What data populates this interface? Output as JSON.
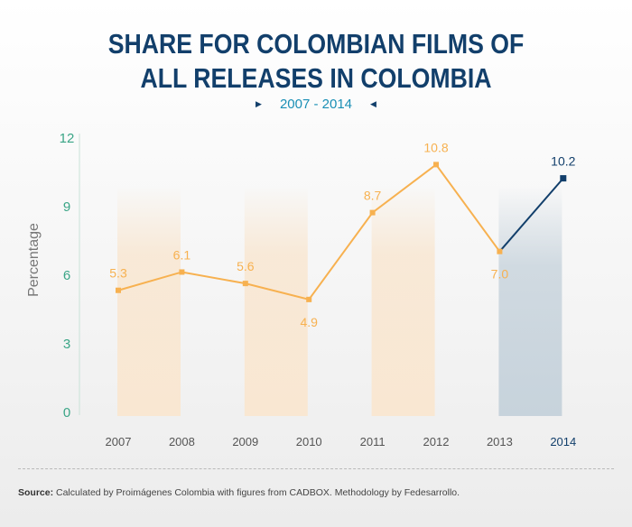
{
  "header": {
    "title_line1": "SHARE FOR COLOMBIAN FILMS OF",
    "title_line2": "ALL RELEASES IN COLOMBIA",
    "subtitle": "2007 - 2014"
  },
  "colors": {
    "orange": "#f7b150",
    "navy": "#123f6b",
    "teal": "#3aa586",
    "band_orange": "#f9e7d2",
    "band_navy": "#c7d3dc"
  },
  "chart_data": {
    "type": "line",
    "title": "SHARE FOR COLOMBIAN FILMS OF ALL RELEASES IN COLOMBIA",
    "subtitle": "2007 - 2014",
    "xlabel": "",
    "ylabel": "Percentage",
    "ylim": [
      0,
      12
    ],
    "yticks": [
      0,
      3,
      6,
      9,
      12
    ],
    "x": [
      "2007",
      "2008",
      "2009",
      "2010",
      "2011",
      "2012",
      "2013",
      "2014"
    ],
    "values": [
      5.3,
      6.1,
      5.6,
      4.9,
      8.7,
      10.8,
      7.0,
      10.2
    ],
    "value_labels": [
      "5.3",
      "6.1",
      "5.6",
      "4.9",
      "8.7",
      "10.8",
      "7.0",
      "10.2"
    ],
    "highlight_year": "2014",
    "highlight_bands": [
      "2007",
      "2009",
      "2011",
      "2013"
    ],
    "grid": false
  },
  "footer": {
    "source_label": "Source:",
    "source_text": " Calculated by Proimágenes Colombia with figures from CADBOX. Methodology by Fedesarrollo."
  }
}
